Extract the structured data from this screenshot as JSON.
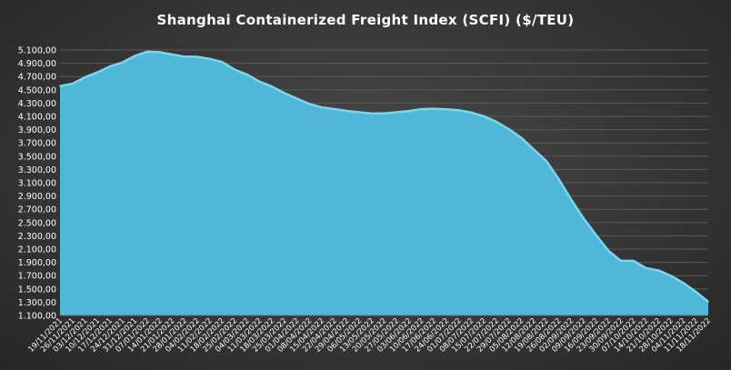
{
  "chart_data": {
    "type": "area",
    "title": "Shanghai  Containerized Freight Index  (SCFI) ($/TEU)",
    "xlabel": "",
    "ylabel": "",
    "ylim": [
      1100,
      5100
    ],
    "yticks": [
      "1.100,00",
      "1.300,00",
      "1.500,00",
      "1.700,00",
      "1.900,00",
      "2.100,00",
      "2.300,00",
      "2.500,00",
      "2.700,00",
      "2.900,00",
      "3.100,00",
      "3.300,00",
      "3.500,00",
      "3.700,00",
      "3.900,00",
      "4.100,00",
      "4.300,00",
      "4.500,00",
      "4.700,00",
      "4.900,00",
      "5.100,00"
    ],
    "x": [
      "19/11/2021",
      "26/11/2021",
      "03/12/2021",
      "10/12/2021",
      "17/12/2021",
      "24/12/2021",
      "31/12/2021",
      "07/01/2022",
      "14/01/2022",
      "21/01/2022",
      "28/01/2022",
      "04/02/2022",
      "11/02/2022",
      "18/02/2022",
      "25/02/2022",
      "04/03/2022",
      "11/03/2022",
      "18/03/2022",
      "25/03/2022",
      "01/04/2022",
      "08/04/2022",
      "15/04/2022",
      "22/04/2022",
      "29/04/2022",
      "06/05/2022",
      "13/05/2022",
      "20/05/2022",
      "27/05/2022",
      "03/06/2022",
      "10/06/2022",
      "17/06/2022",
      "24/06/2022",
      "01/07/2022",
      "08/07/2022",
      "15/07/2022",
      "22/07/2022",
      "29/07/2022",
      "05/08/2022",
      "12/08/2022",
      "19/08/2022",
      "26/08/2022",
      "02/09/2022",
      "09/09/2022",
      "16/09/2022",
      "23/09/2022",
      "30/09/2022",
      "07/10/2022",
      "14/10/2022",
      "21/10/2022",
      "28/10/2022",
      "04/11/2022",
      "11/11/2022",
      "18/11/2022"
    ],
    "series": [
      {
        "name": "",
        "color": "#4fb8d8",
        "line_color": "#7fd4ec",
        "values": [
          4555,
          4592,
          4690,
          4763,
          4852,
          4912,
          5011,
          5075,
          5066,
          5033,
          5000,
          4998,
          4966,
          4920,
          4805,
          4730,
          4625,
          4549,
          4451,
          4369,
          4287,
          4236,
          4209,
          4182,
          4162,
          4143,
          4146,
          4162,
          4180,
          4210,
          4214,
          4207,
          4192,
          4158,
          4102,
          4019,
          3907,
          3777,
          3601,
          3429,
          3157,
          2848,
          2562,
          2313,
          2073,
          1923,
          1923,
          1814,
          1779,
          1698,
          1590,
          1458,
          1306
        ]
      }
    ]
  }
}
